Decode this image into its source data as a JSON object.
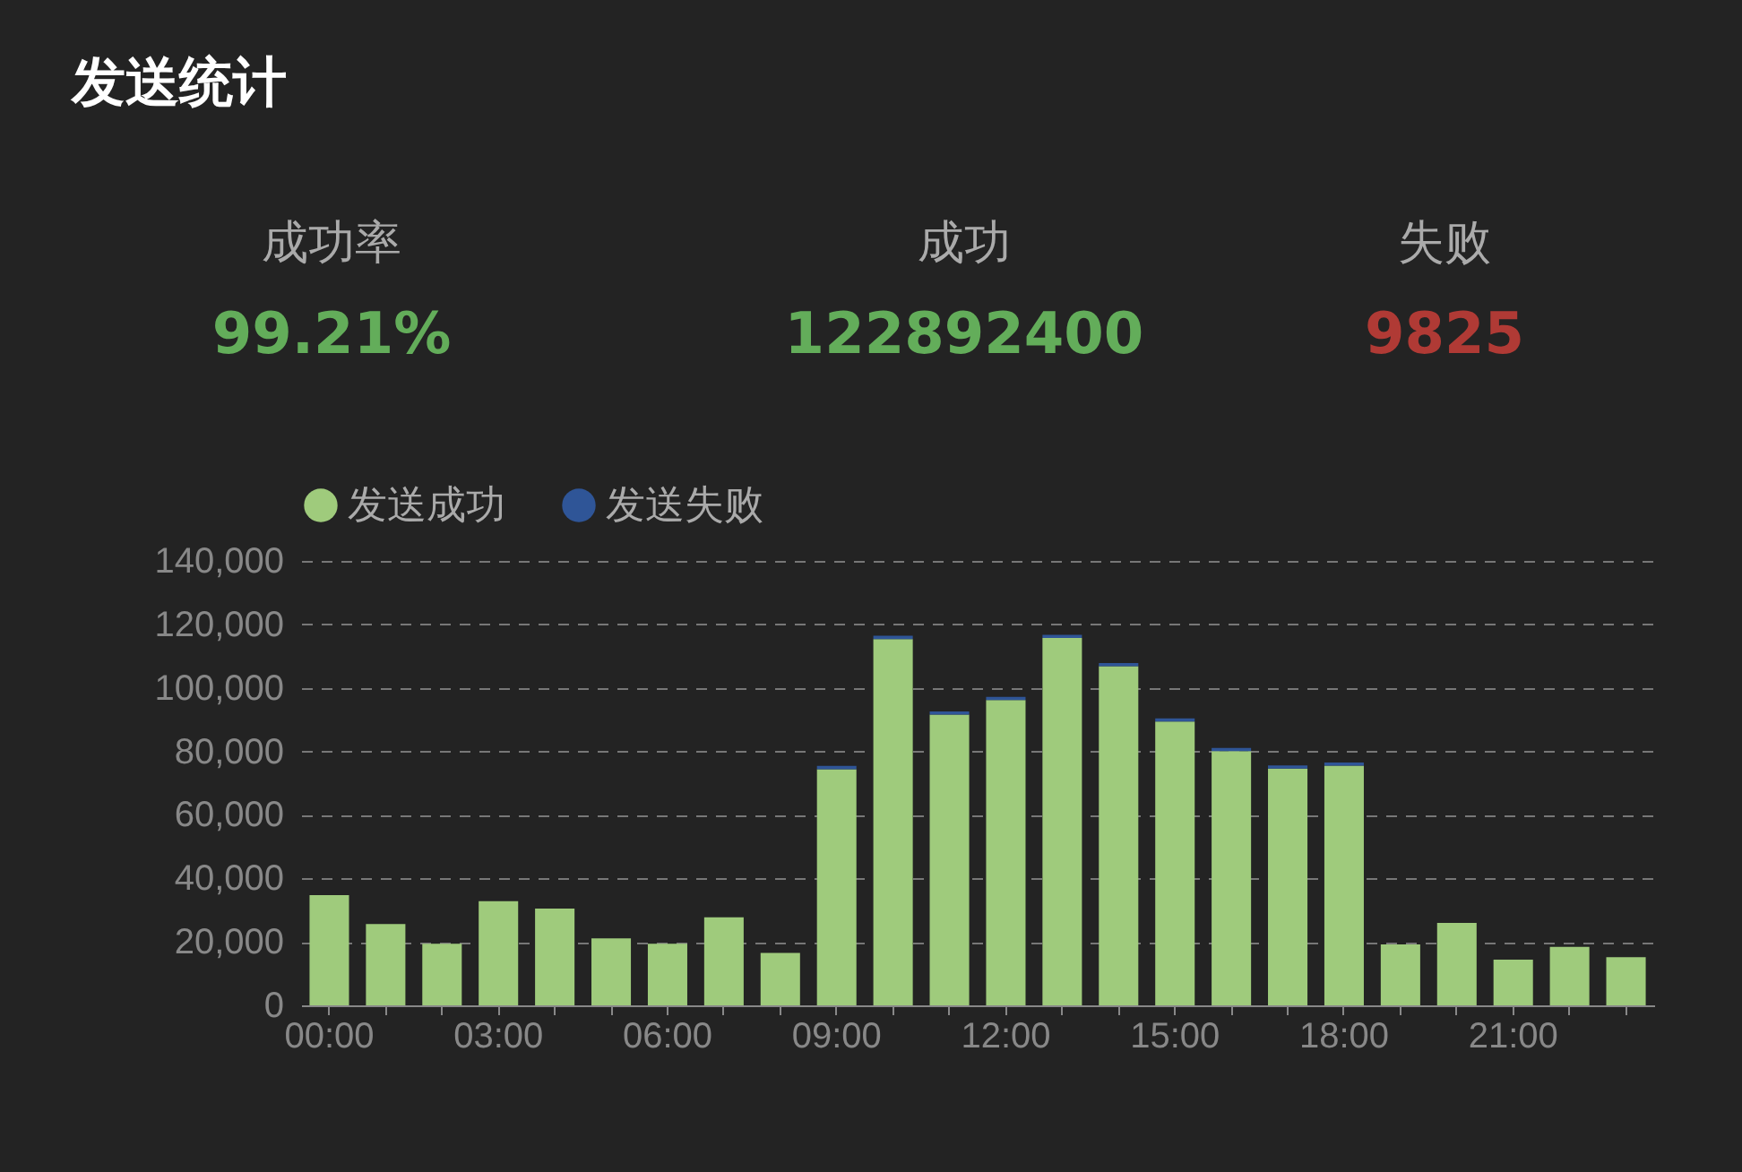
{
  "chart_data": [
    {
      "type": "other",
      "title": "发送统计",
      "annotations": [
        "成功率",
        "99.21%",
        "成功",
        "122892400",
        "失败",
        "9825"
      ]
    },
    {
      "type": "bar",
      "stacked": true,
      "categories": [
        "00:00",
        null,
        null,
        "03:00",
        null,
        null,
        "06:00",
        null,
        null,
        "09:00",
        null,
        null,
        "12:00",
        null,
        null,
        "15:00",
        null,
        null,
        "18:00",
        null,
        null,
        "21:00",
        null,
        null
      ],
      "series": [
        {
          "name": "发送成功",
          "color": "#9fcb7c",
          "values": [
            34700,
            25600,
            19400,
            32800,
            30500,
            21100,
            19400,
            27700,
            16500,
            74400,
            115400,
            91600,
            96200,
            115700,
            106800,
            89400,
            80100,
            74600,
            75500,
            19200,
            26000,
            14400,
            18400,
            15200
          ]
        },
        {
          "name": "发送失败",
          "color": "#2f5597",
          "values": [
            null,
            null,
            null,
            null,
            null,
            null,
            null,
            null,
            null,
            1000,
            1000,
            1000,
            1000,
            1000,
            1000,
            1000,
            1000,
            1000,
            1000,
            null,
            null,
            null,
            null,
            null
          ]
        }
      ],
      "ylim": [
        0,
        140000
      ],
      "yticks": [
        0,
        {
          "value": 20000,
          "label": "20,000"
        },
        {
          "value": 40000,
          "label": "40,000"
        },
        {
          "value": 60000,
          "label": "60,000"
        },
        {
          "value": 80000,
          "label": "80,000"
        },
        {
          "value": 100000,
          "label": "100,000"
        },
        {
          "value": 120000,
          "label": "120,000"
        },
        {
          "value": 140000,
          "label": "140,000"
        }
      ],
      "grid": "y",
      "legend": "top"
    }
  ]
}
